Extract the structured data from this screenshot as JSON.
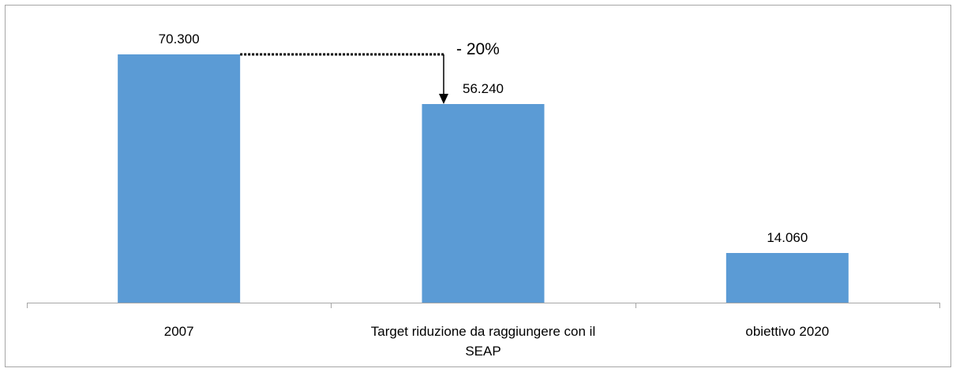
{
  "chart_data": {
    "type": "bar",
    "categories": [
      "2007",
      "Target riduzione da raggiungere con il SEAP",
      "obiettivo 2020"
    ],
    "values": [
      70300,
      56240,
      14060
    ],
    "value_labels": [
      "70.300",
      "56.240",
      "14.060"
    ],
    "color": "#5b9bd5",
    "annotation": "- 20%"
  }
}
